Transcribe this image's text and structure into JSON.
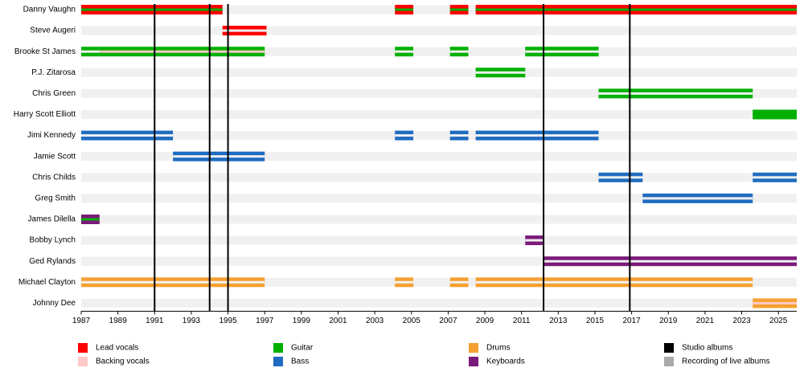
{
  "chart_data": {
    "type": "timeline",
    "xlim": [
      1987,
      2026
    ],
    "xticks": [
      1987,
      1989,
      1991,
      1993,
      1995,
      1997,
      1999,
      2001,
      2003,
      2005,
      2007,
      2009,
      2011,
      2013,
      2015,
      2017,
      2019,
      2021,
      2023,
      2025
    ],
    "roles": [
      {
        "name": "Lead vocals",
        "color": "#ff0000"
      },
      {
        "name": "Backing vocals",
        "color": "#ffc8c8"
      },
      {
        "name": "Guitar",
        "color": "#00b000"
      },
      {
        "name": "Bass",
        "color": "#1f6cc0"
      },
      {
        "name": "Drums",
        "color": "#f5a030"
      },
      {
        "name": "Keyboards",
        "color": "#7a1a7a"
      }
    ],
    "events": [
      {
        "name": "Studio albums",
        "color": "#000000",
        "x": [
          1991,
          1994,
          1995,
          2012.2,
          2016.9
        ]
      },
      {
        "name": "Recording of live albums",
        "color": "#aaaaaa",
        "x": []
      }
    ],
    "members": [
      {
        "name": "Danny Vaughn",
        "bars": [
          {
            "role": "Lead vocals",
            "secondary": "Guitar",
            "start": 1987,
            "end": 1994.7
          },
          {
            "role": "Lead vocals",
            "secondary": "Guitar",
            "start": 2004.1,
            "end": 2005.1
          },
          {
            "role": "Lead vocals",
            "secondary": "Guitar",
            "start": 2007.1,
            "end": 2008.1
          },
          {
            "role": "Lead vocals",
            "secondary": "Guitar",
            "start": 2008.5,
            "end": 2026
          }
        ]
      },
      {
        "name": "Steve Augeri",
        "bars": [
          {
            "role": "Lead vocals",
            "start": 1994.7,
            "end": 1997.1
          }
        ]
      },
      {
        "name": "Brooke St James",
        "bars": [
          {
            "role": "Guitar",
            "start": 1987,
            "end": 1988
          },
          {
            "role": "Guitar",
            "secondary": "Backing vocals",
            "start": 1988,
            "end": 1997
          },
          {
            "role": "Guitar",
            "start": 2004.1,
            "end": 2005.1
          },
          {
            "role": "Guitar",
            "start": 2007.1,
            "end": 2008.1
          },
          {
            "role": "Guitar",
            "start": 2011.2,
            "end": 2015.2
          }
        ]
      },
      {
        "name": "P.J. Zitarosa",
        "bars": [
          {
            "role": "Guitar",
            "start": 2008.5,
            "end": 2011.2
          }
        ]
      },
      {
        "name": "Chris Green",
        "bars": [
          {
            "role": "Guitar",
            "start": 2015.2,
            "end": 2023.6
          }
        ]
      },
      {
        "name": "Harry Scott Elliott",
        "bars": [
          {
            "role": "Guitar",
            "secondary": "Guitar",
            "start": 2023.6,
            "end": 2026
          }
        ]
      },
      {
        "name": "Jimi Kennedy",
        "bars": [
          {
            "role": "Bass",
            "start": 1987,
            "end": 1992
          },
          {
            "role": "Bass",
            "start": 2004.1,
            "end": 2005.1
          },
          {
            "role": "Bass",
            "start": 2007.1,
            "end": 2008.1
          },
          {
            "role": "Bass",
            "start": 2008.5,
            "end": 2015.2
          }
        ]
      },
      {
        "name": "Jamie Scott",
        "bars": [
          {
            "role": "Bass",
            "start": 1992,
            "end": 1997
          }
        ]
      },
      {
        "name": "Chris Childs",
        "bars": [
          {
            "role": "Bass",
            "start": 2015.2,
            "end": 2017.6
          },
          {
            "role": "Bass",
            "start": 2023.6,
            "end": 2026
          }
        ]
      },
      {
        "name": "Greg Smith",
        "bars": [
          {
            "role": "Bass",
            "start": 2017.6,
            "end": 2023.6
          }
        ]
      },
      {
        "name": "James Dilella",
        "bars": [
          {
            "role": "Keyboards",
            "secondary": "Guitar",
            "start": 1987,
            "end": 1988
          }
        ]
      },
      {
        "name": "Bobby Lynch",
        "bars": [
          {
            "role": "Keyboards",
            "start": 2011.2,
            "end": 2012.2
          }
        ]
      },
      {
        "name": "Ged Rylands",
        "bars": [
          {
            "role": "Keyboards",
            "start": 2012.2,
            "end": 2026
          }
        ]
      },
      {
        "name": "Michael Clayton",
        "bars": [
          {
            "role": "Drums",
            "start": 1987,
            "end": 1997
          },
          {
            "role": "Drums",
            "start": 2004.1,
            "end": 2005.1
          },
          {
            "role": "Drums",
            "start": 2007.1,
            "end": 2008.1
          },
          {
            "role": "Drums",
            "start": 2008.5,
            "end": 2023.6
          }
        ]
      },
      {
        "name": "Johnny Dee",
        "bars": [
          {
            "role": "Drums",
            "secondary": "Backing vocals",
            "start": 2023.6,
            "end": 2026
          }
        ]
      }
    ]
  }
}
